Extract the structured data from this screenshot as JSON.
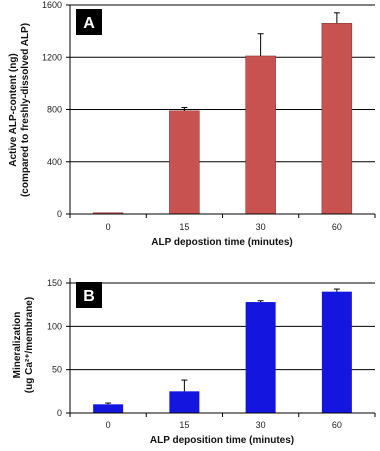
{
  "chart_data": [
    {
      "type": "bar",
      "panel_label": "A",
      "categories": [
        "0",
        "15",
        "30",
        "60"
      ],
      "values": [
        10,
        790,
        1210,
        1460
      ],
      "errors": [
        0,
        25,
        170,
        80
      ],
      "ylim": [
        0,
        1600
      ],
      "yticks": [
        "0",
        "400",
        "800",
        "1200",
        "1600"
      ],
      "xlabel": "ALP depostion time (minutes)",
      "ylabel_line1": "Active ALP-content (ng)",
      "ylabel_line2": "(compared to freshly-dissolved ALP)",
      "bar_color": "#c85250",
      "grid": true
    },
    {
      "type": "bar",
      "panel_label": "B",
      "categories": [
        "0",
        "15",
        "30",
        "60"
      ],
      "values": [
        10,
        25,
        128,
        140
      ],
      "errors": [
        1.5,
        13,
        1.5,
        3
      ],
      "ylim": [
        0,
        150
      ],
      "yticks": [
        "0",
        "50",
        "100",
        "150"
      ],
      "xlabel": "ALP deposition time (minutes)",
      "ylabel_line1": "Mineralization",
      "ylabel_line2": "(ug Ca²⁺/membrane)",
      "bar_color": "#1515e0",
      "grid": true
    }
  ]
}
